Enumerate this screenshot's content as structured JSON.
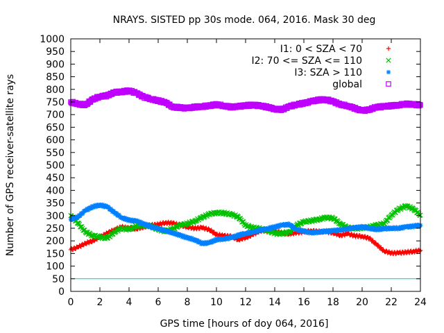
{
  "chart_data": {
    "type": "scatter",
    "title": "NRAYS. SISTED pp 30s mode. 064, 2016. Mask 30 deg",
    "xlabel": "GPS time [hours of doy 064, 2016]",
    "ylabel": "Number of GPS receiver-satellite rays",
    "xlim": [
      0,
      24
    ],
    "ylim": [
      0,
      1000
    ],
    "xticks": [
      0,
      2,
      4,
      6,
      8,
      10,
      12,
      14,
      16,
      18,
      20,
      22,
      24
    ],
    "yticks": [
      0,
      50,
      100,
      150,
      200,
      250,
      300,
      350,
      400,
      450,
      500,
      550,
      600,
      650,
      700,
      750,
      800,
      850,
      900,
      950,
      1000
    ],
    "reference_line": {
      "y": 50,
      "color": "#00c8c8"
    },
    "legend_position": "top-right",
    "series": [
      {
        "name": "I1: 0 < SZA < 70",
        "marker": "+",
        "color": "#ff0000",
        "x": [
          0,
          0.5,
          1,
          1.5,
          2,
          2.5,
          3,
          3.5,
          4,
          4.5,
          5,
          5.5,
          6,
          6.5,
          7,
          7.5,
          8,
          8.5,
          9,
          9.5,
          10,
          10.5,
          11,
          11.5,
          12,
          12.5,
          13,
          13.5,
          14,
          14.5,
          15,
          15.5,
          16,
          16.5,
          17,
          17.5,
          18,
          18.5,
          19,
          19.5,
          20,
          20.5,
          21,
          21.5,
          22,
          22.5,
          23,
          23.5,
          24
        ],
        "values": [
          165,
          175,
          190,
          200,
          215,
          230,
          245,
          255,
          250,
          248,
          255,
          262,
          265,
          272,
          270,
          262,
          255,
          250,
          252,
          245,
          225,
          220,
          218,
          205,
          212,
          225,
          240,
          242,
          238,
          232,
          228,
          232,
          236,
          240,
          237,
          236,
          232,
          222,
          228,
          220,
          218,
          210,
          185,
          160,
          152,
          152,
          155,
          158,
          162
        ]
      },
      {
        "name": "I2: 70 <= SZA <= 110",
        "marker": "x",
        "color": "#00c000",
        "x": [
          0,
          0.5,
          1,
          1.5,
          2,
          2.5,
          3,
          3.5,
          4,
          4.5,
          5,
          5.5,
          6,
          6.5,
          7,
          7.5,
          8,
          8.5,
          9,
          9.5,
          10,
          10.5,
          11,
          11.5,
          12,
          12.5,
          13,
          13.5,
          14,
          14.5,
          15,
          15.5,
          16,
          16.5,
          17,
          17.5,
          18,
          18.5,
          19,
          19.5,
          20,
          20.5,
          21,
          21.5,
          22,
          22.5,
          23,
          23.5,
          24
        ],
        "values": [
          300,
          270,
          235,
          222,
          215,
          210,
          235,
          250,
          245,
          258,
          262,
          258,
          245,
          238,
          248,
          262,
          268,
          278,
          292,
          306,
          312,
          310,
          305,
          295,
          262,
          252,
          248,
          240,
          230,
          228,
          236,
          262,
          275,
          280,
          285,
          292,
          290,
          268,
          252,
          248,
          252,
          255,
          262,
          268,
          302,
          325,
          338,
          328,
          302
        ]
      },
      {
        "name": "I3: SZA > 110",
        "marker": "*",
        "color": "#0080ff",
        "x": [
          0,
          0.5,
          1,
          1.5,
          2,
          2.5,
          3,
          3.5,
          4,
          4.5,
          5,
          5.5,
          6,
          6.5,
          7,
          7.5,
          8,
          8.5,
          9,
          9.5,
          10,
          10.5,
          11,
          11.5,
          12,
          12.5,
          13,
          13.5,
          14,
          14.5,
          15,
          15.5,
          16,
          16.5,
          17,
          17.5,
          18,
          18.5,
          19,
          19.5,
          20,
          20.5,
          21,
          21.5,
          22,
          22.5,
          23,
          23.5,
          24
        ],
        "values": [
          285,
          295,
          320,
          335,
          342,
          335,
          312,
          292,
          282,
          278,
          268,
          256,
          248,
          240,
          232,
          222,
          212,
          205,
          190,
          192,
          205,
          208,
          212,
          222,
          230,
          235,
          242,
          248,
          255,
          262,
          265,
          245,
          238,
          232,
          235,
          238,
          240,
          243,
          248,
          252,
          255,
          250,
          245,
          248,
          250,
          250,
          255,
          258,
          262
        ]
      },
      {
        "name": "global",
        "marker": "square",
        "color": "#c000ff",
        "x": [
          0,
          0.5,
          1,
          1.5,
          2,
          2.5,
          3,
          3.5,
          4,
          4.5,
          5,
          5.5,
          6,
          6.5,
          7,
          7.5,
          8,
          8.5,
          9,
          9.5,
          10,
          10.5,
          11,
          11.5,
          12,
          12.5,
          13,
          13.5,
          14,
          14.5,
          15,
          15.5,
          16,
          16.5,
          17,
          17.5,
          18,
          18.5,
          19,
          19.5,
          20,
          20.5,
          21,
          21.5,
          22,
          22.5,
          23,
          23.5,
          24
        ],
        "values": [
          750,
          742,
          738,
          760,
          772,
          775,
          788,
          790,
          795,
          785,
          770,
          762,
          755,
          748,
          730,
          728,
          725,
          730,
          732,
          735,
          740,
          735,
          730,
          732,
          736,
          738,
          735,
          730,
          722,
          720,
          732,
          740,
          745,
          752,
          758,
          760,
          752,
          740,
          735,
          725,
          715,
          720,
          730,
          732,
          735,
          738,
          742,
          740,
          738
        ]
      }
    ]
  }
}
